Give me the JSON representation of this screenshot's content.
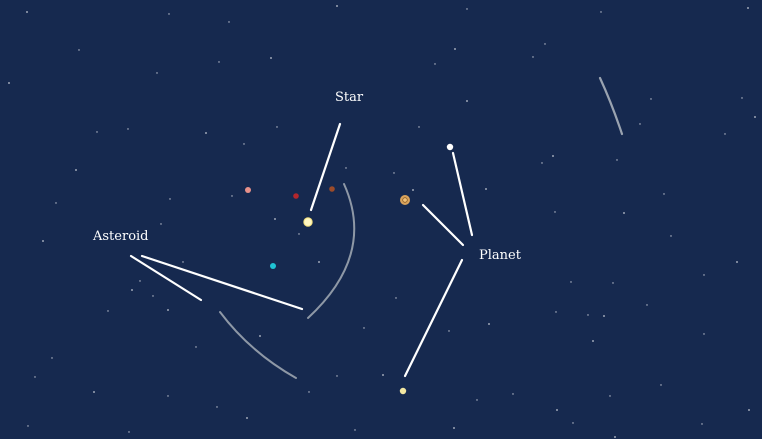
{
  "diagram": {
    "background_color": "#16294f",
    "labels": {
      "star": "Star",
      "asteroid": "Asteroid",
      "planet": "Planet"
    },
    "colors": {
      "leader_line": "#ffffff",
      "comet_trail": "#9aa3b0",
      "star": "#fff7c2",
      "planet_ringed": "#d9a35c",
      "planet_white": "#ffffff",
      "planet_yellow": "#f2e7a2",
      "dot_pink": "#e8918a",
      "dot_red": "#b3262c",
      "dot_brown": "#9b4b2a",
      "dot_cyan": "#1fc3d4"
    }
  }
}
